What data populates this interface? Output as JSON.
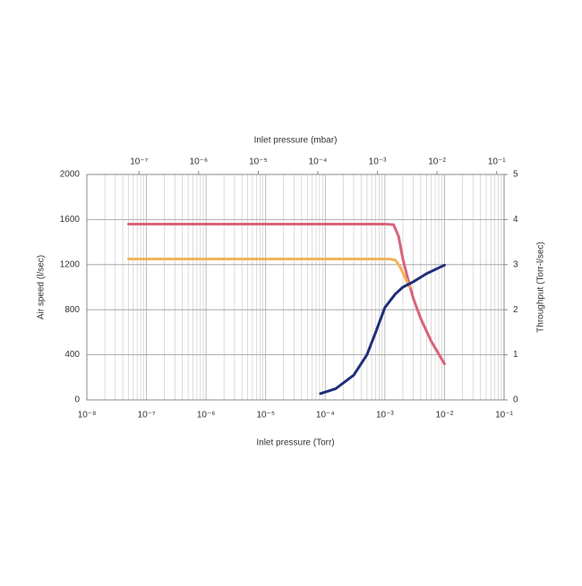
{
  "chart_data": {
    "type": "line",
    "xlabel": "Inlet pressure (Torr)",
    "x2label": "Inlet pressure (mbar)",
    "ylabel": "Air speed (l/sec)",
    "y2label": "Throughput (Torr-l/sec)",
    "xscale": "log",
    "grid": true,
    "xlim": [
      1e-08,
      0.1
    ],
    "xticks": [
      {
        "value": 1e-08,
        "label": "10⁻⁸"
      },
      {
        "value": 1e-07,
        "label": "10⁻⁷"
      },
      {
        "value": 1e-06,
        "label": "10⁻⁶"
      },
      {
        "value": 1e-05,
        "label": "10⁻⁵"
      },
      {
        "value": 0.0001,
        "label": "10⁻⁴"
      },
      {
        "value": 0.001,
        "label": "10⁻³"
      },
      {
        "value": 0.01,
        "label": "10⁻²"
      },
      {
        "value": 0.1,
        "label": "10⁻¹"
      }
    ],
    "x2lim": [
      1.333e-08,
      0.1333
    ],
    "x2ticks": [
      {
        "value": 1e-07,
        "label": "10⁻⁷"
      },
      {
        "value": 1e-06,
        "label": "10⁻⁶"
      },
      {
        "value": 1e-05,
        "label": "10⁻⁵"
      },
      {
        "value": 0.0001,
        "label": "10⁻⁴"
      },
      {
        "value": 0.001,
        "label": "10⁻³"
      },
      {
        "value": 0.01,
        "label": "10⁻²"
      },
      {
        "value": 0.1,
        "label": "10⁻¹"
      }
    ],
    "ylim": [
      0,
      2000
    ],
    "yticks": [
      0,
      400,
      800,
      1200,
      1600,
      2000
    ],
    "y2lim": [
      0,
      5
    ],
    "y2ticks": [
      0,
      1,
      2,
      3,
      4,
      5
    ],
    "series": [
      {
        "color": "#d9637a",
        "x": [
          5e-08,
          1e-06,
          0.0001,
          0.001,
          0.0014,
          0.0017,
          0.002,
          0.0025,
          0.003,
          0.004,
          0.006,
          0.01
        ],
        "values": [
          1560,
          1560,
          1560,
          1560,
          1555,
          1450,
          1250,
          1050,
          900,
          720,
          520,
          320
        ]
      },
      {
        "color": "#f2b35a",
        "x": [
          5e-08,
          1e-06,
          0.0001,
          0.0012,
          0.0015,
          0.0018,
          0.0022,
          0.0026
        ],
        "values": [
          1250,
          1250,
          1250,
          1250,
          1240,
          1180,
          1080,
          1000
        ]
      },
      {
        "color": "#1f2f7a",
        "axis": "y2",
        "x": [
          8.3e-05,
          0.00015,
          0.0003,
          0.0005,
          0.0007,
          0.001,
          0.0015,
          0.002,
          0.003,
          0.005,
          0.01
        ],
        "values": [
          0.14,
          0.25,
          0.55,
          1.0,
          1.5,
          2.05,
          2.35,
          2.5,
          2.62,
          2.8,
          2.99
        ]
      }
    ]
  }
}
